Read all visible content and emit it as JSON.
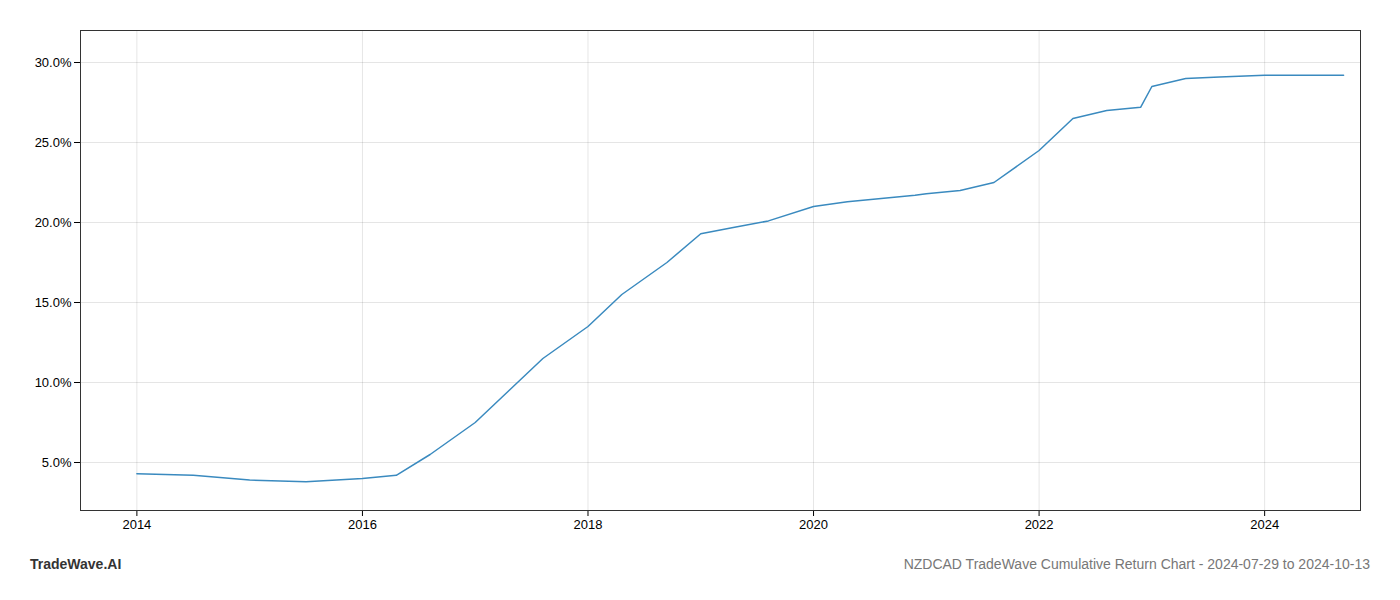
{
  "chart_data": {
    "type": "line",
    "title": "NZDCAD TradeWave Cumulative Return Chart - 2024-07-29 to 2024-10-13",
    "annotations": [
      "TradeWave.AI"
    ],
    "x": [
      2014.0,
      2014.5,
      2015.0,
      2015.5,
      2016.0,
      2016.3,
      2016.6,
      2017.0,
      2017.3,
      2017.6,
      2018.0,
      2018.3,
      2018.7,
      2019.0,
      2019.3,
      2019.6,
      2020.0,
      2020.3,
      2020.6,
      2020.9,
      2021.0,
      2021.3,
      2021.6,
      2022.0,
      2022.3,
      2022.6,
      2022.9,
      2023.0,
      2023.3,
      2023.6,
      2024.0,
      2024.3,
      2024.7
    ],
    "values": [
      4.3,
      4.2,
      3.9,
      3.8,
      4.0,
      4.2,
      5.5,
      7.5,
      9.5,
      11.5,
      13.5,
      15.5,
      17.5,
      19.3,
      19.7,
      20.1,
      21.0,
      21.3,
      21.5,
      21.7,
      21.8,
      22.0,
      22.5,
      24.5,
      26.5,
      27.0,
      27.2,
      28.5,
      29.0,
      29.1,
      29.2,
      29.2,
      29.2
    ],
    "color": "#3a8abf",
    "xlim": [
      2013.5,
      2024.85
    ],
    "ylim": [
      2.0,
      32.0
    ],
    "xticks": [
      2014,
      2016,
      2018,
      2020,
      2022,
      2024
    ],
    "yticks": [
      {
        "value": 5.0,
        "label": "5.0%"
      },
      {
        "value": 10.0,
        "label": "10.0%"
      },
      {
        "value": 15.0,
        "label": "15.0%"
      },
      {
        "value": 20.0,
        "label": "20.0%"
      },
      {
        "value": 25.0,
        "label": "25.0%"
      },
      {
        "value": 30.0,
        "label": "30.0%"
      }
    ],
    "grid": true
  }
}
